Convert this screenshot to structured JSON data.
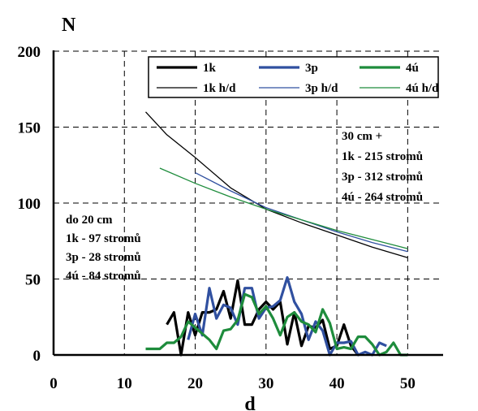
{
  "chart_data": {
    "type": "line",
    "title": "",
    "xlabel": "d",
    "ylabel": "N",
    "xlim": [
      0,
      55
    ],
    "ylim": [
      0,
      200
    ],
    "xticks": [
      "0",
      "10",
      "20",
      "30",
      "40",
      "50"
    ],
    "yticks": [
      "0",
      "50",
      "100",
      "150",
      "200"
    ],
    "grid": "dashed",
    "legend_position": "top",
    "series": [
      {
        "name": "1k",
        "color": "#000000",
        "style": "thick",
        "points": [
          [
            16,
            20
          ],
          [
            17,
            28
          ],
          [
            18,
            0
          ],
          [
            19,
            28
          ],
          [
            20,
            13
          ],
          [
            21,
            28
          ],
          [
            22,
            28
          ],
          [
            23,
            30
          ],
          [
            24,
            42
          ],
          [
            25,
            24
          ],
          [
            26,
            49
          ],
          [
            27,
            20
          ],
          [
            28,
            20
          ],
          [
            29,
            30
          ],
          [
            30,
            35
          ],
          [
            31,
            30
          ],
          [
            32,
            35
          ],
          [
            33,
            7
          ],
          [
            34,
            28
          ],
          [
            35,
            6
          ],
          [
            36,
            19
          ],
          [
            37,
            18
          ],
          [
            38,
            23
          ],
          [
            39,
            4
          ],
          [
            40,
            6
          ],
          [
            41,
            20
          ],
          [
            42,
            6
          ],
          [
            43,
            0
          ]
        ]
      },
      {
        "name": "3p",
        "color": "#3050A0",
        "style": "thick",
        "points": [
          [
            19,
            10
          ],
          [
            20,
            27
          ],
          [
            21,
            13
          ],
          [
            22,
            44
          ],
          [
            23,
            24
          ],
          [
            24,
            33
          ],
          [
            25,
            31
          ],
          [
            26,
            20
          ],
          [
            27,
            44
          ],
          [
            28,
            44
          ],
          [
            29,
            24
          ],
          [
            30,
            31
          ],
          [
            31,
            32
          ],
          [
            32,
            36
          ],
          [
            33,
            51
          ],
          [
            34,
            35
          ],
          [
            35,
            27
          ],
          [
            36,
            10
          ],
          [
            37,
            22
          ],
          [
            38,
            16
          ],
          [
            39,
            0
          ],
          [
            40,
            8
          ],
          [
            41,
            8
          ],
          [
            42,
            9
          ],
          [
            43,
            0
          ],
          [
            44,
            2
          ],
          [
            45,
            0
          ],
          [
            46,
            8
          ],
          [
            47,
            6
          ]
        ]
      },
      {
        "name": "4ú",
        "color": "#1E8C3C",
        "style": "thick",
        "points": [
          [
            13,
            4
          ],
          [
            14,
            4
          ],
          [
            15,
            4
          ],
          [
            16,
            8
          ],
          [
            17,
            8
          ],
          [
            18,
            12
          ],
          [
            19,
            22
          ],
          [
            20,
            18
          ],
          [
            21,
            14
          ],
          [
            22,
            10
          ],
          [
            23,
            4
          ],
          [
            24,
            16
          ],
          [
            25,
            17
          ],
          [
            26,
            23
          ],
          [
            27,
            40
          ],
          [
            28,
            38
          ],
          [
            29,
            27
          ],
          [
            30,
            32
          ],
          [
            31,
            24
          ],
          [
            32,
            13
          ],
          [
            33,
            25
          ],
          [
            34,
            28
          ],
          [
            35,
            22
          ],
          [
            36,
            20
          ],
          [
            37,
            15
          ],
          [
            38,
            30
          ],
          [
            39,
            21
          ],
          [
            40,
            4
          ],
          [
            41,
            5
          ],
          [
            42,
            4
          ],
          [
            43,
            12
          ],
          [
            44,
            12
          ],
          [
            45,
            7
          ],
          [
            46,
            0
          ],
          [
            47,
            2
          ],
          [
            48,
            8
          ],
          [
            49,
            0
          ],
          [
            50,
            0
          ]
        ]
      },
      {
        "name": "1k h/d",
        "color": "#000000",
        "style": "thin",
        "points": [
          [
            13,
            160
          ],
          [
            16,
            145
          ],
          [
            20,
            130
          ],
          [
            25,
            110
          ],
          [
            30,
            96
          ],
          [
            35,
            87
          ],
          [
            40,
            79
          ],
          [
            45,
            71
          ],
          [
            50,
            64
          ]
        ]
      },
      {
        "name": "3p h/d",
        "color": "#3050A0",
        "style": "thin",
        "points": [
          [
            20,
            120
          ],
          [
            25,
            108
          ],
          [
            30,
            97
          ],
          [
            35,
            89
          ],
          [
            40,
            81
          ],
          [
            45,
            74
          ],
          [
            50,
            68
          ]
        ]
      },
      {
        "name": "4ú h/d",
        "color": "#1E8C3C",
        "style": "thin",
        "points": [
          [
            15,
            123
          ],
          [
            20,
            113
          ],
          [
            25,
            104
          ],
          [
            30,
            96
          ],
          [
            35,
            89
          ],
          [
            40,
            82
          ],
          [
            45,
            76
          ],
          [
            50,
            70
          ]
        ]
      }
    ],
    "annotations": {
      "right": [
        "30 cm +",
        "1k  - 215 stromů",
        "3p - 312 stromů",
        "4ú - 264 stromů"
      ],
      "left": [
        "do 20 cm",
        "1k - 97 stromů",
        "3p - 28 stromů",
        "4ú - 84 stromů"
      ]
    }
  }
}
